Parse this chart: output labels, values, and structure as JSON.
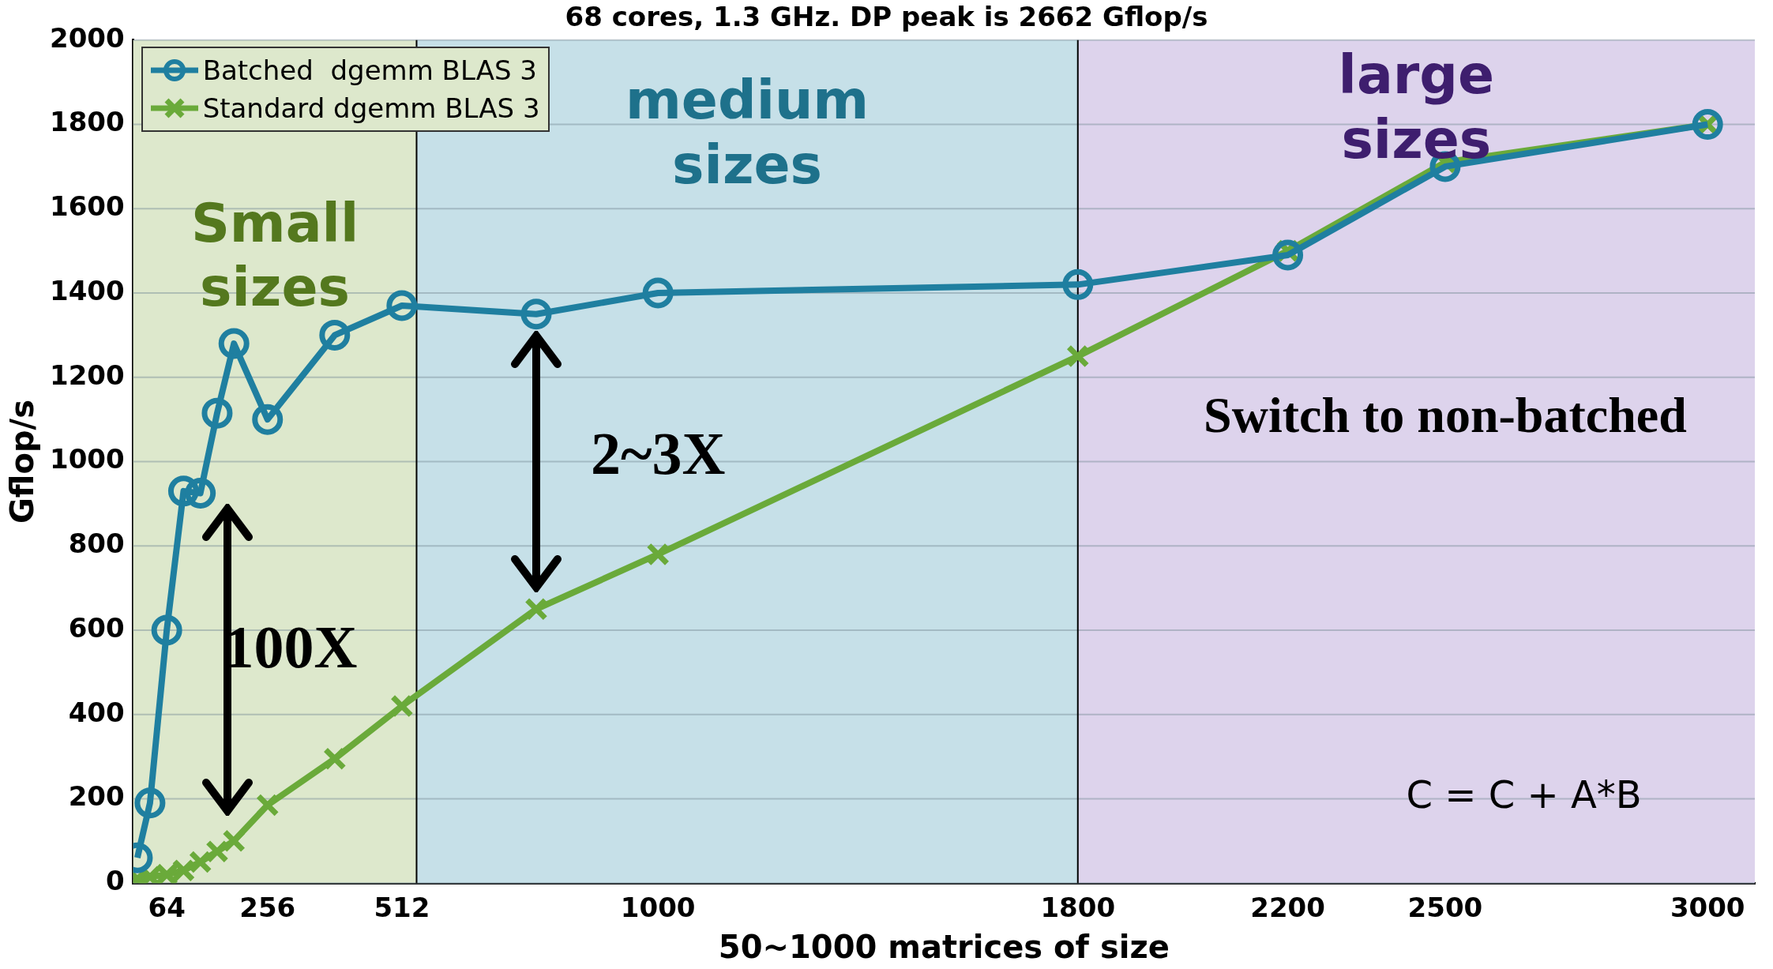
{
  "chart_data": {
    "type": "line",
    "title": "68 cores, 1.3 GHz. DP peak is 2662 Gflop/s",
    "xlabel": "50~1000 matrices of size",
    "ylabel": "Gflop/s",
    "x": [
      8,
      32,
      64,
      96,
      128,
      160,
      192,
      256,
      384,
      512,
      768,
      1000,
      1800,
      2200,
      2500,
      3000
    ],
    "series": [
      {
        "name": "Batched  dgemm BLAS 3",
        "color": "#1f7fa0",
        "marker": "circle",
        "values": [
          60,
          190,
          600,
          930,
          925,
          1115,
          1280,
          1100,
          1300,
          1370,
          1350,
          1400,
          1420,
          1490,
          1700,
          1800
        ]
      },
      {
        "name": "Standard dgemm BLAS 3",
        "color": "#6aaa3a",
        "marker": "cross",
        "values": [
          10,
          15,
          20,
          30,
          50,
          75,
          100,
          185,
          295,
          420,
          650,
          780,
          1250,
          1500,
          1710,
          1800
        ]
      }
    ],
    "bands": [
      {
        "axis": "x",
        "from": 0,
        "to": 540,
        "label": "Small sizes",
        "color": "#dde8cc"
      },
      {
        "axis": "x",
        "from": 540,
        "to": 1800,
        "label": "medium sizes",
        "color": "#c6e0e8"
      },
      {
        "axis": "x",
        "from": 1800,
        "to": 3090,
        "label": "large sizes",
        "color": "#ddd3ec"
      }
    ],
    "ref_lines": [
      {
        "axis": "x",
        "value": 540,
        "color": "#000000"
      },
      {
        "axis": "x",
        "value": 1800,
        "color": "#000000"
      }
    ],
    "annotations": [
      "100X",
      "2~3X",
      "Switch to non-batched",
      "C = C + A*B"
    ],
    "xlim": [
      0,
      3090
    ],
    "xticks": [
      64,
      256,
      512,
      1000,
      1800,
      2200,
      2500,
      3000
    ],
    "ylim": [
      0,
      2000
    ],
    "yticks": [
      0,
      200,
      400,
      600,
      800,
      1000,
      1200,
      1400,
      1600,
      1800,
      2000
    ],
    "grid": "y",
    "legend": "top left"
  }
}
